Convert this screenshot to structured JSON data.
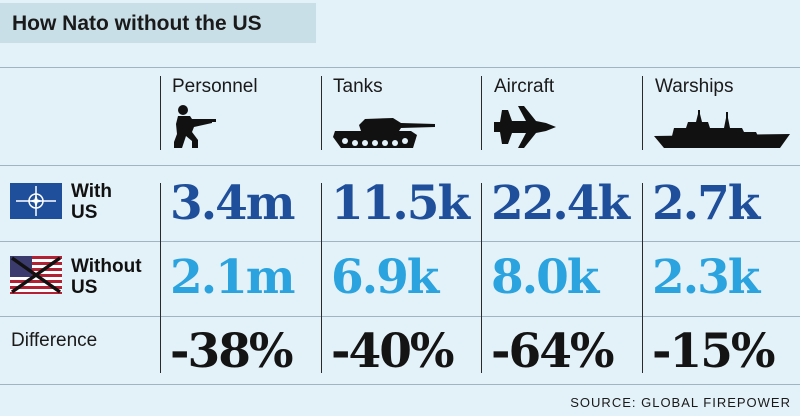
{
  "title": "How Nato without the US",
  "source": "SOURCE: GLOBAL FIREPOWER",
  "icons": [
    "soldier-icon",
    "tank-icon",
    "fighter-jet-icon",
    "warship-icon",
    "nato-flag-icon",
    "crossed-us-flag-icon"
  ],
  "colors": {
    "with_us": "#1f4f9a",
    "without_us": "#2aa3de",
    "difference": "#141414"
  },
  "chart_data": {
    "type": "table",
    "categories": [
      "Personnel",
      "Tanks",
      "Aircraft",
      "Warships"
    ],
    "rows": [
      {
        "label_line1": "With",
        "label_line2": "US",
        "values": [
          "3.4m",
          "11.5k",
          "22.4k",
          "2.7k"
        ]
      },
      {
        "label_line1": "Without",
        "label_line2": "US",
        "values": [
          "2.1m",
          "6.9k",
          "8.0k",
          "2.3k"
        ]
      },
      {
        "label": "Difference",
        "values": [
          "-38%",
          "-40%",
          "-64%",
          "-15%"
        ]
      }
    ]
  }
}
